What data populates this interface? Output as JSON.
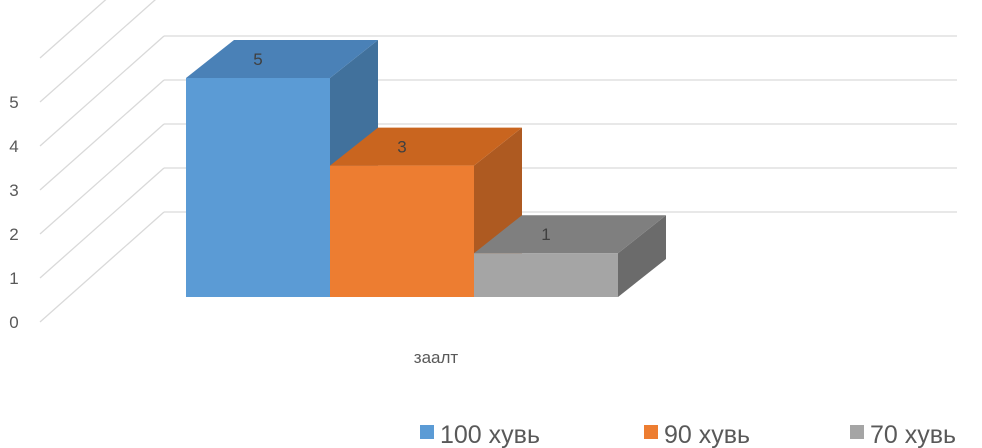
{
  "chart_data": {
    "type": "bar",
    "three_d": true,
    "categories": [
      "заалт"
    ],
    "series": [
      {
        "name": "100 хувь",
        "values": [
          5
        ],
        "color": "#5B9BD5",
        "color_side": "#41719C",
        "color_top": "#4A81B7"
      },
      {
        "name": "90 хувь",
        "values": [
          3
        ],
        "color": "#ED7D31",
        "color_side": "#AE5A21",
        "color_top": "#C9651F"
      },
      {
        "name": "70 хувь",
        "values": [
          1
        ],
        "color": "#A5A5A5",
        "color_side": "#6B6B6B",
        "color_top": "#7F7F7F"
      }
    ],
    "y_ticks": [
      0,
      1,
      2,
      3,
      4,
      5
    ],
    "ylim": [
      0,
      5
    ],
    "grid": true,
    "legend": "bottom-right",
    "data_labels": true
  }
}
